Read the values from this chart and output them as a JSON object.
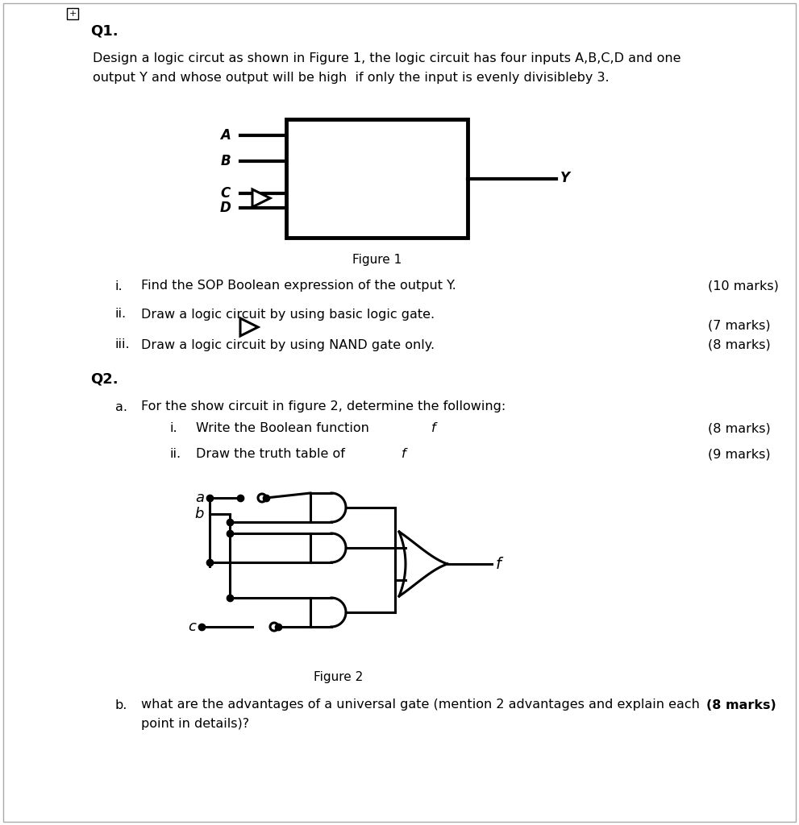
{
  "bg_color": "#ffffff",
  "q1_label": "Q1.",
  "q1_text_line1": "Design a logic circut as shown in Figure 1, the logic circuit has four inputs A,B,C,D and one",
  "q1_text_line2": "output Y and whose output will be high  if only the input is evenly divisibleby 3.",
  "figure1_label": "Figure 1",
  "figure2_label": "Figure 2",
  "q1_items": [
    {
      "label": "i.",
      "text": "Find the SOP Boolean expression of the output Y.",
      "marks": "(10 marks)"
    },
    {
      "label": "ii.",
      "text": "Draw a logic circuit by using basic logic gate.",
      "marks": "(7 marks)"
    },
    {
      "label": "iii.",
      "text": "Draw a logic circuit by using NAND gate only.",
      "marks": "(8 marks)"
    }
  ],
  "q2_label": "Q2.",
  "q2a_text": "For the show circuit in figure 2, determine the following:",
  "q2a_items": [
    {
      "label": "i.",
      "text": "Write the Boolean function f",
      "marks": "(8 marks)"
    },
    {
      "label": "ii.",
      "text": "Draw the truth table of f",
      "marks": "(9 marks)"
    }
  ],
  "q2b_label": "b.",
  "q2b_text": "what are the advantages of a universal gate (mention 2 advantages and explain each",
  "q2b_text2": "point in details)?",
  "q2b_marks": "(8 marks)"
}
